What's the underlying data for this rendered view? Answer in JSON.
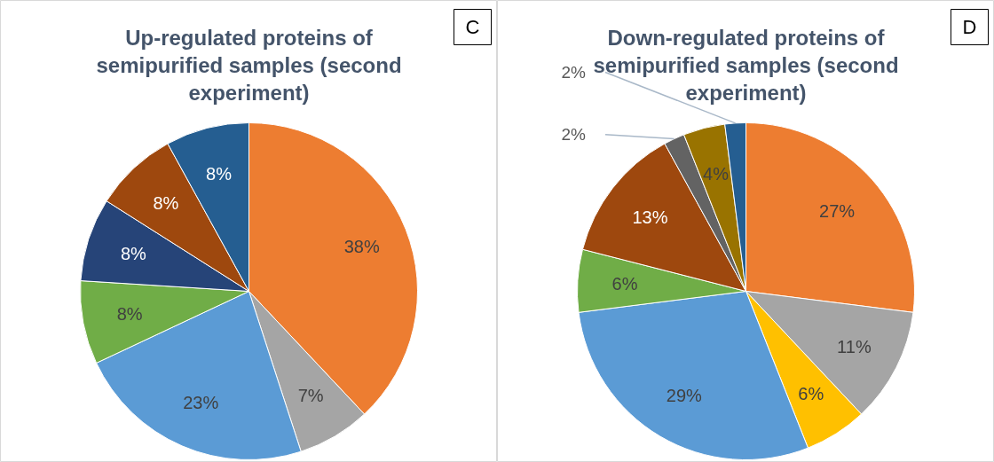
{
  "chart_data": [
    {
      "type": "pie",
      "title": "Up-regulated proteins of semipurified samples (second experiment)",
      "annotations": [
        "C"
      ],
      "categories": [
        null,
        null,
        null,
        null,
        null,
        null,
        null
      ],
      "values": [
        38,
        7,
        23,
        8,
        8,
        8,
        8
      ],
      "value_labels": [
        "38%",
        "7%",
        "23%",
        "8%",
        "8%",
        "8%",
        "8%"
      ],
      "colors": [
        "#ed7d31",
        "#a5a5a5",
        "#5b9bd5",
        "#70ad47",
        "#264478",
        "#9e480e",
        "#255e91"
      ]
    },
    {
      "type": "pie",
      "title": "Down-regulated proteins of semipurified samples (second experiment)",
      "annotations": [
        "D"
      ],
      "categories": [
        null,
        null,
        null,
        null,
        null,
        null,
        null,
        null,
        null
      ],
      "values": [
        27,
        11,
        6,
        29,
        6,
        13,
        2,
        4,
        2
      ],
      "value_labels": [
        "27%",
        "11%",
        "6%",
        "29%",
        "6%",
        "13%",
        "2%",
        "4%",
        "2%"
      ],
      "colors": [
        "#ed7d31",
        "#a5a5a5",
        "#ffc000",
        "#5b9bd5",
        "#70ad47",
        "#9e480e",
        "#636363",
        "#997300",
        "#255e91"
      ]
    }
  ]
}
